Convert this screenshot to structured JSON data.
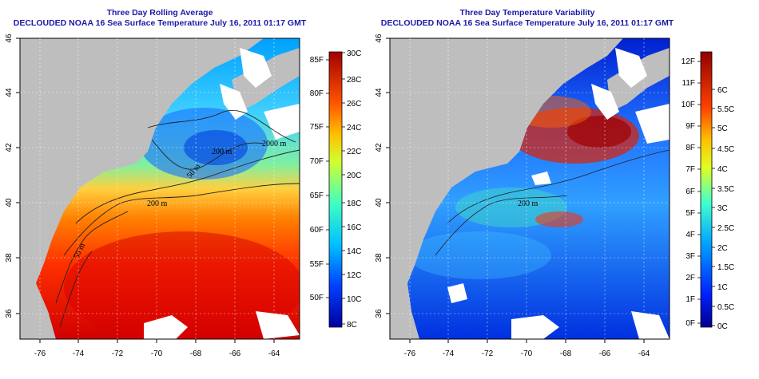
{
  "panels": [
    {
      "title1": "Three Day Rolling Average",
      "title2": "DECLOUDED NOAA 16 Sea Surface Temperature July 16, 2011 01:17 GMT",
      "x_ticks": [
        "-76",
        "-74",
        "-72",
        "-70",
        "-68",
        "-66",
        "-64"
      ],
      "y_ticks": [
        "36",
        "38",
        "40",
        "42",
        "44",
        "46"
      ],
      "colorbar": {
        "colors": [
          "#ffffff",
          "#00008b",
          "#0000ff",
          "#0080ff",
          "#00e0ff",
          "#40ffc0",
          "#a0ff60",
          "#ffff00",
          "#ffb000",
          "#ff6000",
          "#e00000",
          "#900000"
        ],
        "labels_c": [
          "30C",
          "28C",
          "26C",
          "24C",
          "22C",
          "20C",
          "18C",
          "16C",
          "14C",
          "12C",
          "10C",
          "8C"
        ],
        "labels_f": [
          "85F",
          "80F",
          "75F",
          "70F",
          "65F",
          "60F",
          "55F",
          "50F"
        ]
      },
      "isobaths": [
        "2000 m",
        "200 m",
        "50 m",
        "200 m",
        "200 m",
        "50 m"
      ]
    },
    {
      "title1": "Three Day Temperature Variability",
      "title2": "DECLOUDED NOAA 16 Sea Surface Temperature July 16, 2011 01:17 GMT",
      "x_ticks": [
        "-76",
        "-74",
        "-72",
        "-70",
        "-68",
        "-66",
        "-64"
      ],
      "y_ticks": [
        "36",
        "38",
        "40",
        "42",
        "44",
        "46"
      ],
      "colorbar": {
        "colors": [
          "#00008b",
          "#0000ff",
          "#0080ff",
          "#00e0ff",
          "#40ffc0",
          "#a0ff60",
          "#ffff00",
          "#ffb000",
          "#ff6000",
          "#e00000",
          "#900000"
        ],
        "labels_c": [
          "6C",
          "5.5C",
          "5C",
          "4.5C",
          "4C",
          "3.5C",
          "3C",
          "2.5C",
          "2C",
          "1.5C",
          "1C",
          "0.5C",
          "0C"
        ],
        "labels_f": [
          "12F",
          "11F",
          "10F",
          "9F",
          "8F",
          "7F",
          "6F",
          "5F",
          "4F",
          "3F",
          "2F",
          "1F",
          "0F"
        ]
      },
      "isobaths": [
        "200 m"
      ]
    }
  ]
}
